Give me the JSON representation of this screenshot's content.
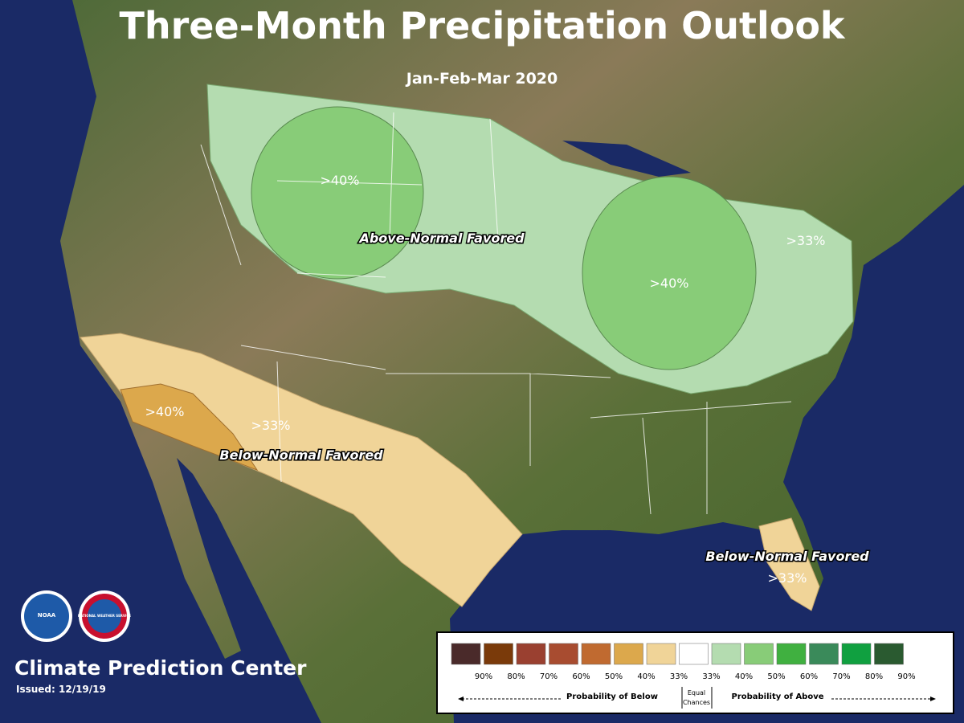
{
  "header": {
    "title": "Three-Month Precipitation Outlook",
    "subtitle": "Jan-Feb-Mar 2020"
  },
  "map_labels": [
    {
      "text": ">40%"
    },
    {
      "text": "Above-Normal Favored"
    },
    {
      "text": ">33%"
    },
    {
      "text": ">40%"
    },
    {
      "text": ">40%"
    },
    {
      "text": ">33%"
    },
    {
      "text": "Below-Normal Favored"
    },
    {
      "text": "Below-Normal Favored"
    },
    {
      "text": ">33%"
    }
  ],
  "logos": [
    "NOAA",
    "NATIONAL WEATHER SERVICE"
  ],
  "footer": {
    "org": "Climate Prediction Center",
    "issued": "Issued: 12/19/19"
  },
  "legend": {
    "swatches": [
      {
        "color": "#4a2a2a",
        "label": "90%"
      },
      {
        "color": "#7a3a0a",
        "label": "80%"
      },
      {
        "color": "#9a4030",
        "label": "70%"
      },
      {
        "color": "#a84c30",
        "label": "60%"
      },
      {
        "color": "#c06a30",
        "label": "50%"
      },
      {
        "color": "#dca84c",
        "label": "40%"
      },
      {
        "color": "#f0d498",
        "label": "33%"
      },
      {
        "color": "#ffffff",
        "label": "33%"
      },
      {
        "color": "#b4dcb0",
        "label": "40%"
      },
      {
        "color": "#88cc78",
        "label": "50%"
      },
      {
        "color": "#40b040",
        "label": "60%"
      },
      {
        "color": "#3a8a5a",
        "label": "70%"
      },
      {
        "color": "#10a040",
        "label": "80%"
      },
      {
        "color": "#2a5a30",
        "label": "90%"
      }
    ],
    "below": "Probability of Below",
    "equal": [
      "Equal",
      "Chances"
    ],
    "above": "Probability of Above"
  }
}
